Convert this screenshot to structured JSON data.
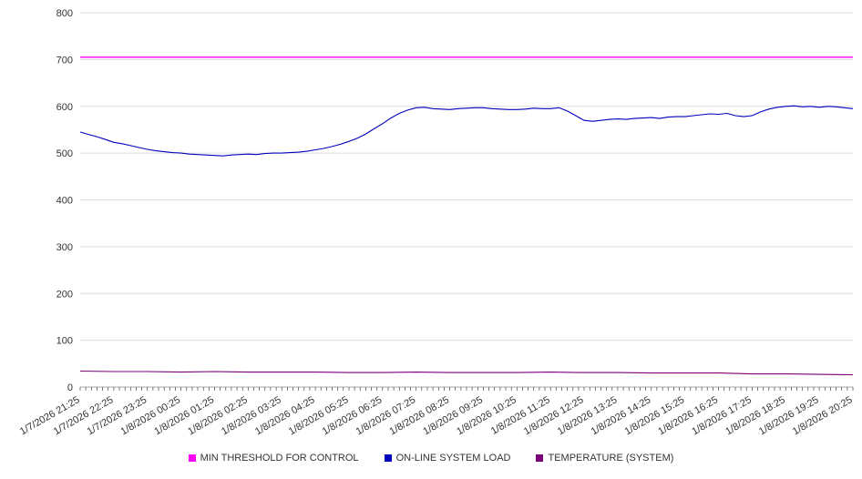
{
  "chart_data": {
    "type": "line",
    "title": "",
    "xlabel": "",
    "ylabel": "",
    "ylim": [
      0,
      800
    ],
    "grid": "horizontal",
    "legend_position": "bottom",
    "y_ticks": [
      0,
      100,
      200,
      300,
      400,
      500,
      600,
      700,
      800
    ],
    "x_labels": [
      "1/7/2026 21:25",
      "1/7/2026 22:25",
      "1/7/2026 23:25",
      "1/8/2026 00:25",
      "1/8/2026 01:25",
      "1/8/2026 02:25",
      "1/8/2026 03:25",
      "1/8/2026 04:25",
      "1/8/2026 05:25",
      "1/8/2026 06:25",
      "1/8/2026 07:25",
      "1/8/2026 08:25",
      "1/8/2026 09:25",
      "1/8/2026 10:25",
      "1/8/2026 11:25",
      "1/8/2026 12:25",
      "1/8/2026 13:25",
      "1/8/2026 14:25",
      "1/8/2026 15:25",
      "1/8/2026 16:25",
      "1/8/2026 17:25",
      "1/8/2026 18:25",
      "1/8/2026 19:25",
      "1/8/2026 20:25"
    ],
    "series": [
      {
        "name": "MIN THRESHOLD FOR CONTROL",
        "color": "#ff00ff",
        "type": "hline",
        "value": 705
      },
      {
        "name": "ON-LINE SYSTEM LOAD",
        "color": "#0000bb",
        "type": "line",
        "values": [
          545,
          540,
          535,
          529,
          523,
          520,
          516,
          512,
          508,
          505,
          503,
          501,
          500,
          498,
          497,
          496,
          495,
          494,
          496,
          497,
          498,
          497,
          499,
          500,
          500,
          501,
          502,
          504,
          507,
          510,
          514,
          519,
          525,
          532,
          541,
          552,
          563,
          575,
          585,
          592,
          597,
          598,
          595,
          594,
          593,
          595,
          596,
          597,
          597,
          595,
          594,
          593,
          593,
          594,
          596,
          595,
          595,
          597,
          590,
          580,
          570,
          568,
          570,
          572,
          573,
          572,
          574,
          575,
          576,
          574,
          577,
          578,
          578,
          580,
          582,
          584,
          583,
          585,
          580,
          578,
          580,
          588,
          594,
          598,
          600,
          601,
          599,
          600,
          598,
          600,
          599,
          597,
          595
        ]
      },
      {
        "name": "TEMPERATURE (SYSTEM)",
        "color": "#7b007b",
        "type": "line",
        "values": [
          34,
          33,
          33,
          32,
          33,
          32,
          32,
          32,
          31,
          31,
          32,
          31,
          31,
          31,
          32,
          31,
          31,
          30,
          30,
          30,
          28,
          28,
          27,
          26
        ]
      }
    ]
  }
}
